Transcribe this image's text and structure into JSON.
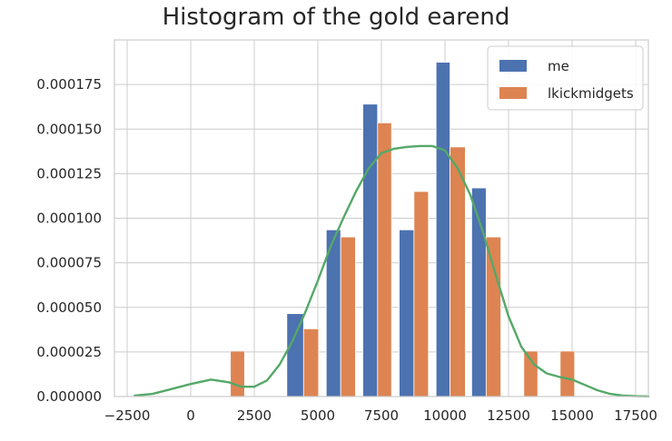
{
  "chart_data": {
    "type": "bar",
    "title": "Histogram of the gold earend",
    "xlabel": "",
    "ylabel": "",
    "xlim": [
      -3000,
      18000
    ],
    "ylim": [
      0,
      0.0002
    ],
    "grid": true,
    "legend_position": "top-right",
    "bin_width": 1267,
    "x_ticks": [
      -2500,
      0,
      2500,
      5000,
      7500,
      10000,
      12500,
      15000,
      17500
    ],
    "x_tick_labels": [
      "−2500",
      "0",
      "2500",
      "5000",
      "7500",
      "10000",
      "12500",
      "15000",
      "17500"
    ],
    "y_ticks": [
      0,
      2.5e-05,
      5e-05,
      7.5e-05,
      0.0001,
      0.000125,
      0.00015,
      0.000175
    ],
    "y_tick_labels": [
      "0.000000",
      "0.000025",
      "0.000050",
      "0.000075",
      "0.000100",
      "0.000125",
      "0.000150",
      "0.000175"
    ],
    "series": [
      {
        "name": "me",
        "color": "#4c72b0",
        "bins": [
          {
            "x0": 3780,
            "x1": 4440,
            "y": 4.65e-05
          },
          {
            "x0": 5330,
            "x1": 5900,
            "y": 9.35e-05
          },
          {
            "x0": 6770,
            "x1": 7350,
            "y": 0.000164
          },
          {
            "x0": 8200,
            "x1": 8780,
            "y": 9.35e-05
          },
          {
            "x0": 9650,
            "x1": 10200,
            "y": 0.0001875
          },
          {
            "x0": 11050,
            "x1": 11620,
            "y": 0.000117
          }
        ]
      },
      {
        "name": "lkickmidgets",
        "color": "#dd8452",
        "bins": [
          {
            "x0": 1560,
            "x1": 2120,
            "y": 2.55e-05
          },
          {
            "x0": 4440,
            "x1": 5030,
            "y": 3.8e-05
          },
          {
            "x0": 5900,
            "x1": 6480,
            "y": 8.95e-05
          },
          {
            "x0": 7350,
            "x1": 7900,
            "y": 0.0001535
          },
          {
            "x0": 8780,
            "x1": 9350,
            "y": 0.000115
          },
          {
            "x0": 10200,
            "x1": 10800,
            "y": 0.00014
          },
          {
            "x0": 11620,
            "x1": 12200,
            "y": 8.95e-05
          },
          {
            "x0": 13100,
            "x1": 13650,
            "y": 2.55e-05
          },
          {
            "x0": 14530,
            "x1": 15100,
            "y": 2.55e-05
          }
        ]
      }
    ],
    "kde": {
      "color": "#55a868",
      "x": [
        -2200,
        -1500,
        -800,
        0,
        800,
        1500,
        2000,
        2500,
        3000,
        3500,
        4000,
        4500,
        5000,
        5500,
        6000,
        6500,
        7000,
        7500,
        8000,
        8500,
        9000,
        9500,
        10000,
        10500,
        11000,
        11500,
        12000,
        12500,
        13000,
        13500,
        14000,
        14500,
        15000,
        15500,
        16000,
        16500,
        17000,
        17500,
        18000
      ],
      "y": [
        5e-07,
        1.5e-06,
        4e-06,
        7e-06,
        9.5e-06,
        8e-06,
        5.5e-06,
        5.5e-06,
        9e-06,
        1.8e-05,
        3.1e-05,
        4.7e-05,
        6.5e-05,
        8.4e-05,
        0.0001,
        0.000115,
        0.000128,
        0.0001365,
        0.000139,
        0.00014,
        0.0001405,
        0.0001405,
        0.000138,
        0.000128,
        0.000113,
        9.2e-05,
        6.8e-05,
        4.5e-05,
        2.8e-05,
        1.8e-05,
        1.3e-05,
        1.1e-05,
        9.5e-06,
        6.5e-06,
        3.5e-06,
        1.5e-06,
        5e-07,
        2e-07,
        1e-07
      ]
    }
  }
}
